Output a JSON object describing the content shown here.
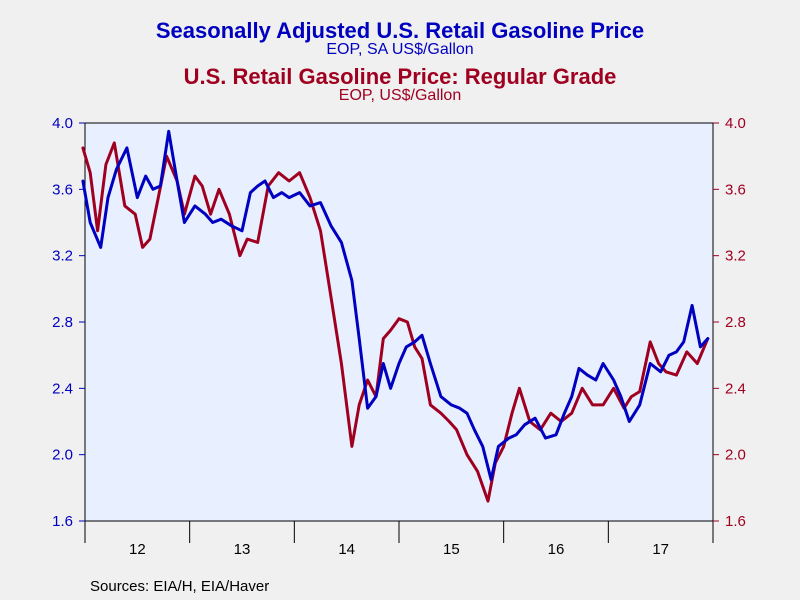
{
  "chart_data": {
    "type": "line",
    "titles": [
      {
        "title": "Seasonally Adjusted U.S. Retail Gasoline Price",
        "subtitle": "EOP, SA US$/Gallon",
        "color": "#0000c0"
      },
      {
        "title": "U.S. Retail Gasoline Price: Regular Grade",
        "subtitle": "EOP, US$/Gallon",
        "color": "#a00020"
      }
    ],
    "x_axis": {
      "ticks": [
        "12",
        "13",
        "14",
        "15",
        "16",
        "17"
      ],
      "range": [
        2012.0,
        2018.0
      ]
    },
    "y_left": {
      "ticks": [
        "1.6",
        "2.0",
        "2.4",
        "2.8",
        "3.2",
        "3.6",
        "4.0"
      ],
      "range": [
        1.6,
        4.0
      ],
      "color": "#0000c0"
    },
    "y_right": {
      "ticks": [
        "1.6",
        "2.0",
        "2.4",
        "2.8",
        "3.2",
        "3.6",
        "4.0"
      ],
      "range": [
        1.6,
        4.0
      ],
      "color": "#a00020"
    },
    "plot_background": "#e8f0ff",
    "series": [
      {
        "color": "#0000c0",
        "axis": "left",
        "x": [
          2011.98,
          2012.05,
          2012.15,
          2012.22,
          2012.3,
          2012.4,
          2012.5,
          2012.58,
          2012.65,
          2012.72,
          2012.8,
          2012.88,
          2012.95,
          2013.05,
          2013.15,
          2013.22,
          2013.3,
          2013.4,
          2013.5,
          2013.58,
          2013.65,
          2013.72,
          2013.8,
          2013.88,
          2013.95,
          2014.05,
          2014.15,
          2014.25,
          2014.35,
          2014.45,
          2014.55,
          2014.62,
          2014.7,
          2014.78,
          2014.85,
          2014.92,
          2015.0,
          2015.07,
          2015.15,
          2015.22,
          2015.3,
          2015.4,
          2015.5,
          2015.58,
          2015.65,
          2015.72,
          2015.8,
          2015.88,
          2015.95,
          2016.05,
          2016.12,
          2016.2,
          2016.3,
          2016.4,
          2016.5,
          2016.58,
          2016.65,
          2016.72,
          2016.8,
          2016.88,
          2016.95,
          2017.05,
          2017.12,
          2017.2,
          2017.3,
          2017.4,
          2017.5,
          2017.58,
          2017.65,
          2017.72,
          2017.8,
          2017.88,
          2017.95
        ],
        "y": [
          3.65,
          3.4,
          3.25,
          3.55,
          3.72,
          3.85,
          3.55,
          3.68,
          3.6,
          3.62,
          3.95,
          3.65,
          3.4,
          3.5,
          3.45,
          3.4,
          3.42,
          3.38,
          3.35,
          3.58,
          3.62,
          3.65,
          3.55,
          3.58,
          3.55,
          3.58,
          3.5,
          3.52,
          3.38,
          3.28,
          3.05,
          2.7,
          2.28,
          2.35,
          2.55,
          2.4,
          2.55,
          2.65,
          2.68,
          2.72,
          2.55,
          2.35,
          2.3,
          2.28,
          2.25,
          2.15,
          2.05,
          1.85,
          2.05,
          2.1,
          2.12,
          2.18,
          2.22,
          2.1,
          2.12,
          2.25,
          2.35,
          2.52,
          2.48,
          2.45,
          2.55,
          2.45,
          2.35,
          2.2,
          2.3,
          2.55,
          2.5,
          2.6,
          2.62,
          2.68,
          2.9,
          2.65,
          2.7
        ]
      },
      {
        "color": "#a00020",
        "axis": "right",
        "x": [
          2011.98,
          2012.05,
          2012.12,
          2012.2,
          2012.28,
          2012.38,
          2012.48,
          2012.55,
          2012.62,
          2012.7,
          2012.78,
          2012.88,
          2012.95,
          2013.05,
          2013.12,
          2013.2,
          2013.28,
          2013.38,
          2013.48,
          2013.55,
          2013.65,
          2013.75,
          2013.85,
          2013.95,
          2014.05,
          2014.15,
          2014.25,
          2014.35,
          2014.45,
          2014.55,
          2014.62,
          2014.7,
          2014.78,
          2014.85,
          2014.92,
          2015.0,
          2015.08,
          2015.15,
          2015.22,
          2015.3,
          2015.4,
          2015.48,
          2015.55,
          2015.65,
          2015.75,
          2015.85,
          2015.92,
          2016.0,
          2016.08,
          2016.15,
          2016.25,
          2016.35,
          2016.45,
          2016.55,
          2016.65,
          2016.75,
          2016.85,
          2016.95,
          2017.05,
          2017.15,
          2017.22,
          2017.3,
          2017.4,
          2017.48,
          2017.55,
          2017.65,
          2017.75,
          2017.85,
          2017.95
        ],
        "y": [
          3.85,
          3.7,
          3.35,
          3.75,
          3.88,
          3.5,
          3.45,
          3.25,
          3.3,
          3.55,
          3.8,
          3.65,
          3.45,
          3.68,
          3.62,
          3.45,
          3.6,
          3.45,
          3.2,
          3.3,
          3.28,
          3.62,
          3.7,
          3.65,
          3.7,
          3.55,
          3.35,
          2.95,
          2.55,
          2.05,
          2.3,
          2.45,
          2.35,
          2.7,
          2.75,
          2.82,
          2.8,
          2.65,
          2.58,
          2.3,
          2.25,
          2.2,
          2.15,
          2.0,
          1.9,
          1.72,
          1.95,
          2.05,
          2.25,
          2.4,
          2.2,
          2.15,
          2.25,
          2.2,
          2.25,
          2.4,
          2.3,
          2.3,
          2.4,
          2.28,
          2.35,
          2.38,
          2.68,
          2.55,
          2.5,
          2.48,
          2.62,
          2.55,
          2.7
        ]
      }
    ],
    "source": "Sources:  EIA/H, EIA/Haver"
  }
}
